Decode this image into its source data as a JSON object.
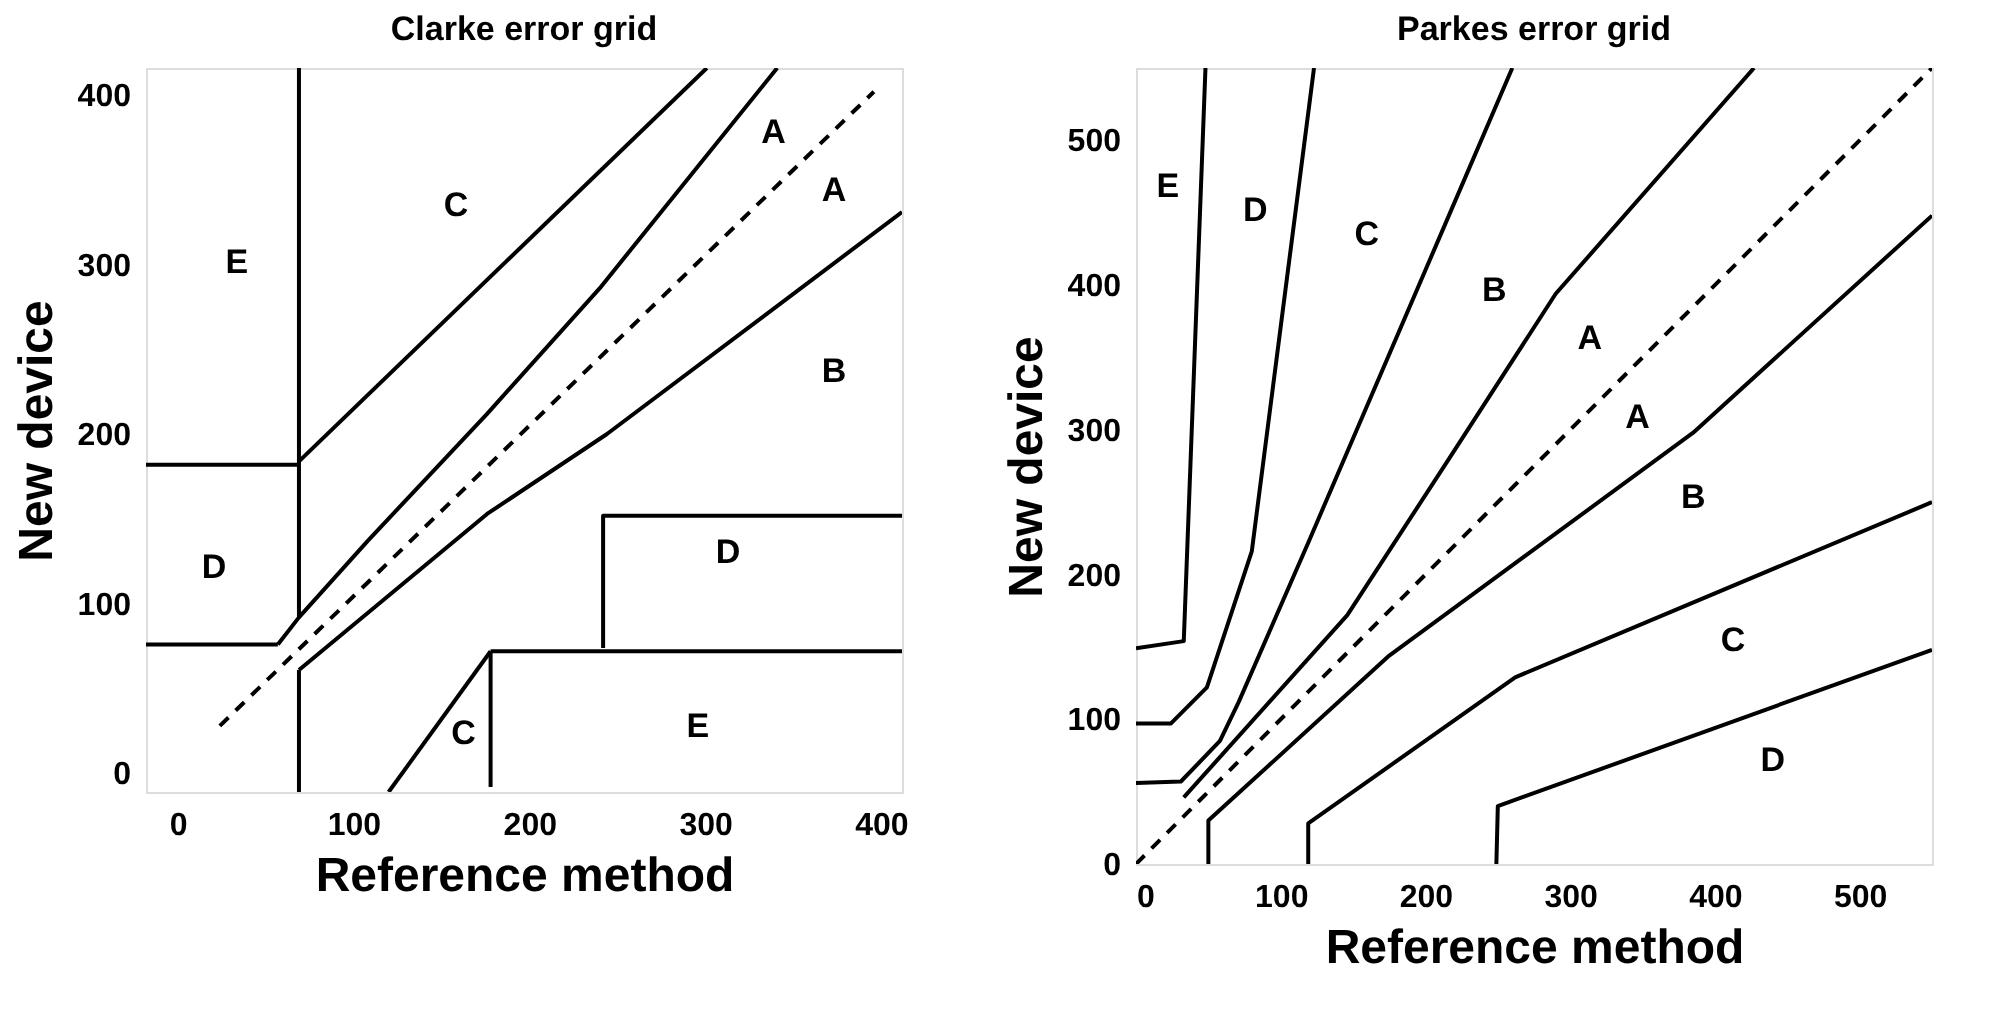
{
  "chart_data": [
    {
      "type": "line",
      "title": "Clarke error grid",
      "xlabel": "Reference method",
      "ylabel": "New device",
      "xlim": [
        -18,
        412
      ],
      "ylim": [
        -11,
        416
      ],
      "xticks": [
        0,
        100,
        200,
        300,
        400
      ],
      "yticks": [
        0,
        100,
        200,
        300,
        400
      ],
      "grid": false,
      "line_style": "solid",
      "series": [
        {
          "color": "#000000",
          "x": [
            69,
            69
          ],
          "values": [
            416,
            92
          ]
        },
        {
          "color": "#000000",
          "x": [
            -18,
            69
          ],
          "values": [
            182,
            182
          ]
        },
        {
          "color": "#000000",
          "x": [
            69,
            301
          ],
          "values": [
            184,
            416
          ]
        },
        {
          "color": "#000000",
          "x": [
            -18,
            57
          ],
          "values": [
            76,
            76
          ]
        },
        {
          "color": "#000000",
          "x": [
            57,
            69,
            108,
            176,
            240,
            341
          ],
          "values": [
            76,
            92,
            137,
            212,
            286,
            416
          ]
        },
        {
          "color": "#000000",
          "x": [
            69,
            69
          ],
          "values": [
            -11,
            61
          ]
        },
        {
          "color": "#000000",
          "x": [
            69,
            176,
            244,
            412
          ],
          "values": [
            61,
            153,
            200,
            331
          ]
        },
        {
          "color": "#000000",
          "x": [
            24,
            396
          ],
          "values": [
            28,
            402
          ],
          "line_style": "dashed"
        },
        {
          "color": "#000000",
          "x": [
            242,
            242,
            412
          ],
          "values": [
            74,
            152,
            152
          ]
        },
        {
          "color": "#000000",
          "x": [
            178,
            412
          ],
          "values": [
            72,
            72
          ]
        },
        {
          "color": "#000000",
          "x": [
            178,
            178
          ],
          "values": [
            72,
            -8
          ]
        },
        {
          "color": "#000000",
          "x": [
            120,
            178
          ],
          "values": [
            -11,
            72
          ]
        }
      ],
      "annotations": [
        "E",
        "C",
        "A",
        "A",
        "B",
        "D",
        "D",
        "C",
        "E"
      ]
    },
    {
      "type": "line",
      "title": "Parkes error grid",
      "xlabel": "Reference method",
      "ylabel": "New device",
      "xlim": [
        0,
        550
      ],
      "ylim": [
        0,
        550
      ],
      "xticks": [
        0,
        100,
        200,
        300,
        400,
        500
      ],
      "yticks": [
        0,
        100,
        200,
        300,
        400,
        500
      ],
      "grid": false,
      "line_style": "solid",
      "series": [
        {
          "color": "#000000",
          "x": [
            0,
            33,
            48
          ],
          "values": [
            149,
            154,
            550
          ]
        },
        {
          "color": "#000000",
          "x": [
            0,
            24,
            49,
            80,
            123
          ],
          "values": [
            97,
            97,
            122,
            216,
            550
          ]
        },
        {
          "color": "#000000",
          "x": [
            0,
            31,
            58,
            71,
            119,
            208,
            260
          ],
          "values": [
            56,
            57,
            85,
            112,
            222,
            429,
            550
          ]
        },
        {
          "color": "#000000",
          "x": [
            33,
            146,
            215,
            290,
            427
          ],
          "values": [
            46,
            172,
            278,
            394,
            550
          ]
        },
        {
          "color": "#000000",
          "x": [
            0,
            550
          ],
          "values": [
            0,
            550
          ],
          "line_style": "dashed"
        },
        {
          "color": "#000000",
          "x": [
            50,
            50,
            175,
            385,
            550
          ],
          "values": [
            0,
            30,
            144,
            298,
            448
          ]
        },
        {
          "color": "#000000",
          "x": [
            119,
            119,
            262,
            550
          ],
          "values": [
            0,
            28,
            129,
            250
          ]
        },
        {
          "color": "#000000",
          "x": [
            249,
            250,
            550
          ],
          "values": [
            0,
            40,
            148
          ]
        }
      ],
      "annotations": [
        "E",
        "D",
        "C",
        "B",
        "A",
        "A",
        "B",
        "C",
        "D"
      ]
    }
  ]
}
